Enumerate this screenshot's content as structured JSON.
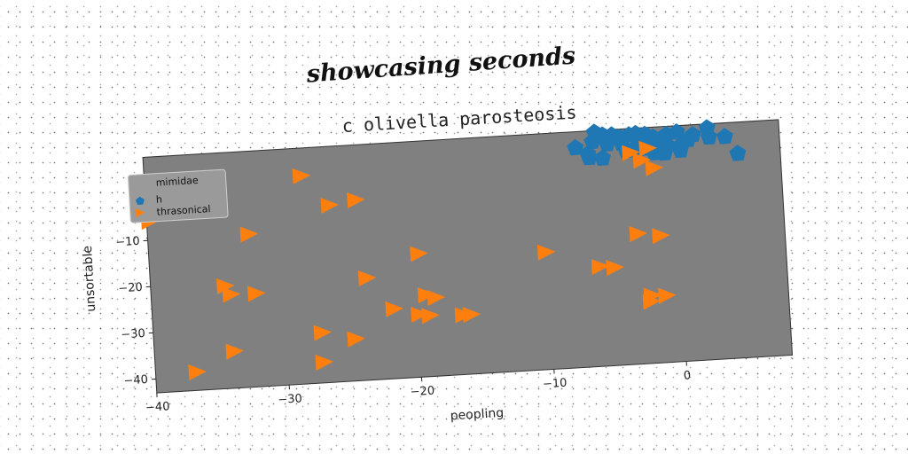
{
  "heading": "showcasing seconds",
  "chart_data": {
    "type": "scatter",
    "title": "c olivella parosteosis",
    "xlabel": "peopling",
    "ylabel": "unsortable",
    "xlim": [
      -40,
      8
    ],
    "ylim": [
      -43,
      8
    ],
    "xticks": [
      -40,
      -30,
      -20,
      -10,
      0
    ],
    "yticks": [
      0,
      -10,
      -20,
      -30,
      -40
    ],
    "grid": false,
    "legend": {
      "title": "mimidae",
      "position": "top-left"
    },
    "series": [
      {
        "name": "h",
        "marker": "pentagon",
        "color": "#1f77b4",
        "points": [
          [
            -5.9,
            7.6
          ],
          [
            -5.3,
            6.9
          ],
          [
            -4.6,
            6.8
          ],
          [
            -4.0,
            6.2
          ],
          [
            -3.3,
            6.6
          ],
          [
            -2.8,
            6.8
          ],
          [
            -2.1,
            6.5
          ],
          [
            -1.5,
            5.8
          ],
          [
            -0.5,
            6.2
          ],
          [
            0.3,
            6.6
          ],
          [
            1.5,
            5.8
          ],
          [
            2.6,
            7.1
          ],
          [
            -6.1,
            5.6
          ],
          [
            -5.0,
            4.9
          ],
          [
            -3.9,
            4.9
          ],
          [
            -2.6,
            4.9
          ],
          [
            -1.6,
            5.1
          ],
          [
            -0.6,
            4.1
          ],
          [
            1.1,
            4.8
          ],
          [
            2.7,
            5.1
          ],
          [
            3.9,
            5.0
          ],
          [
            -7.4,
            4.5
          ],
          [
            -3.6,
            3.2
          ],
          [
            -2.0,
            3.5
          ],
          [
            -1.0,
            3.0
          ],
          [
            0.4,
            3.4
          ],
          [
            -6.5,
            3.0
          ],
          [
            -5.4,
            1.9
          ],
          [
            -1.5,
            2.4
          ],
          [
            -0.7,
            2.2
          ],
          [
            -6.4,
            2.2
          ],
          [
            4.8,
            1.2
          ],
          [
            0.5,
            2.6
          ],
          [
            -3.0,
            3.5
          ]
        ]
      },
      {
        "name": "thrasonical",
        "marker": "triangle-right",
        "color": "#ff7f0e",
        "points": [
          [
            -28.2,
            2.0
          ],
          [
            -26.2,
            -4.7
          ],
          [
            -24.2,
            -3.9
          ],
          [
            -39.8,
            -5.9
          ],
          [
            -32.4,
            -9.9
          ],
          [
            -19.7,
            -16.3
          ],
          [
            -10.1,
            -17.6
          ],
          [
            -3.1,
            -14.8
          ],
          [
            -1.4,
            -15.5
          ],
          [
            -34.4,
            -20.8
          ],
          [
            -34.0,
            -22.7
          ],
          [
            -32.1,
            -22.8
          ],
          [
            -23.7,
            -20.9
          ],
          [
            -6.1,
            -21.4
          ],
          [
            -5.0,
            -21.8
          ],
          [
            -19.3,
            -25.3
          ],
          [
            -18.6,
            -26.0
          ],
          [
            -21.8,
            -27.9
          ],
          [
            -19.9,
            -29.4
          ],
          [
            -19.1,
            -29.8
          ],
          [
            -16.6,
            -30.1
          ],
          [
            -16.0,
            -30.1
          ],
          [
            -2.3,
            -28.3
          ],
          [
            -2.4,
            -29.6
          ],
          [
            -27.3,
            -32.1
          ],
          [
            -24.8,
            -33.9
          ],
          [
            -34.0,
            -35.0
          ],
          [
            -27.3,
            -38.5
          ],
          [
            -36.9,
            -39.0
          ],
          [
            -3.3,
            2.8
          ],
          [
            -2.5,
            1.0
          ],
          [
            -1.6,
            -0.8
          ],
          [
            -2.0,
            3.5
          ],
          [
            -1.2,
            -28.5
          ],
          [
            -36.0,
            -1.0
          ]
        ]
      }
    ]
  }
}
